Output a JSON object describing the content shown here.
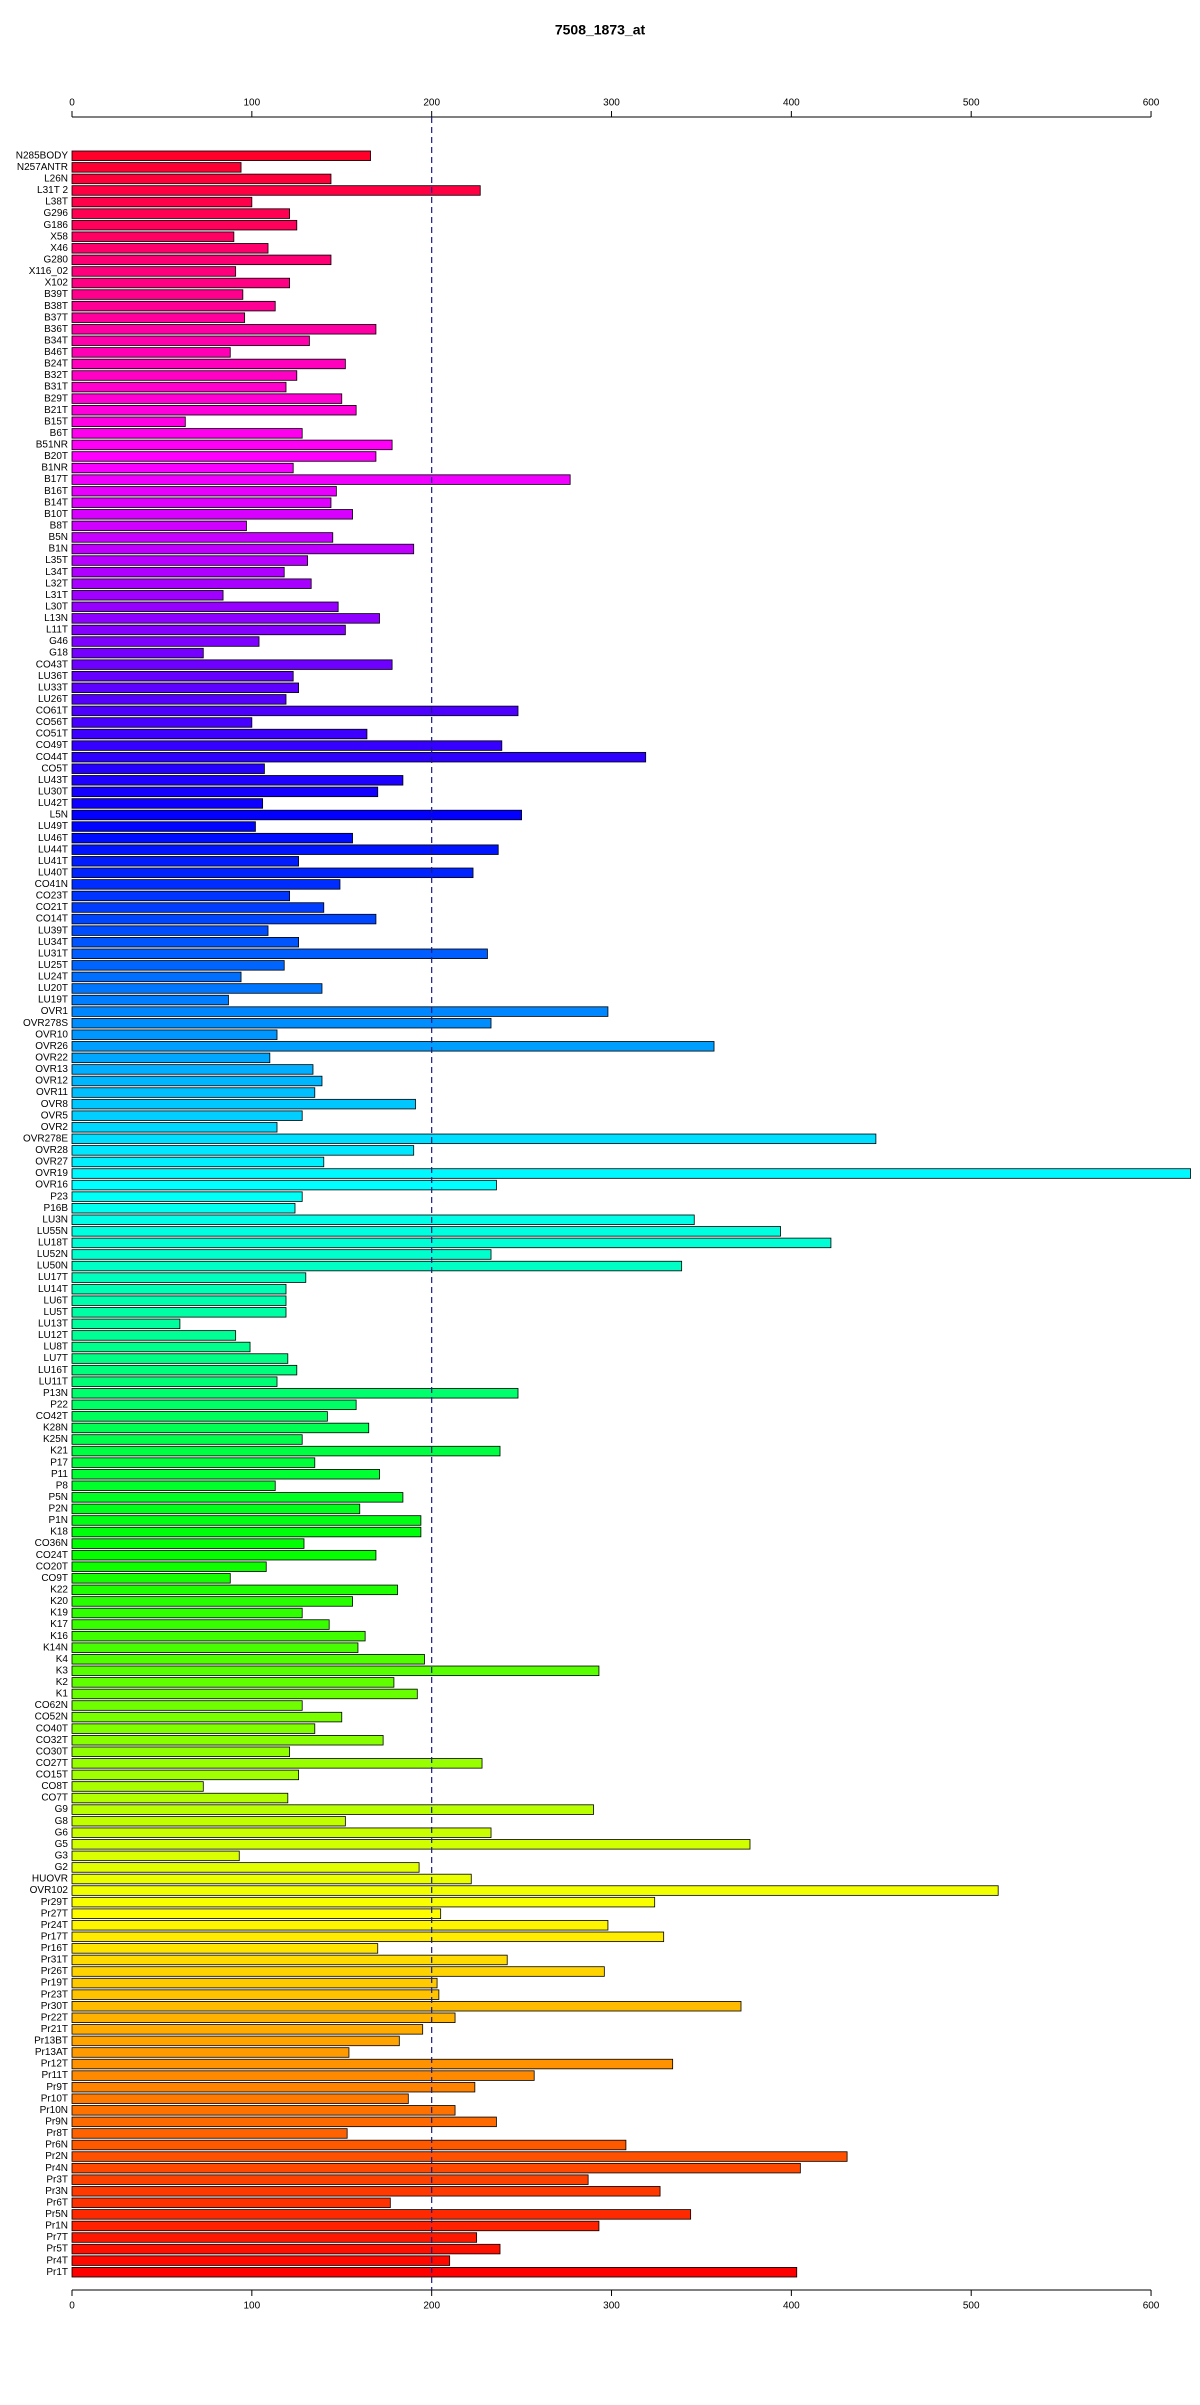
{
  "chart_data": {
    "type": "barh",
    "title": "7508_1873_at",
    "categories": [
      "N285BODY",
      "N257ANTR",
      "L26N",
      "L31T 2",
      "L38T",
      "G296",
      "G186",
      "X58",
      "X46",
      "G280",
      "X116_02",
      "X102",
      "B39T",
      "B38T",
      "B37T",
      "B36T",
      "B34T",
      "B46T",
      "B24T",
      "B32T",
      "B31T",
      "B29T",
      "B21T",
      "B15T",
      "B6T",
      "B51NR",
      "B20T",
      "B1NR",
      "B17T",
      "B16T",
      "B14T",
      "B10T",
      "B8T",
      "B5N",
      "B1N",
      "L35T",
      "L34T",
      "L32T",
      "L31T",
      "L30T",
      "L13N",
      "L11T",
      "G46",
      "G18",
      "CO43T",
      "LU36T",
      "LU33T",
      "LU26T",
      "CO61T",
      "CO56T",
      "CO51T",
      "CO49T",
      "CO44T",
      "CO5T",
      "LU43T",
      "LU30T",
      "LU42T",
      "L5N",
      "LU49T",
      "LU46T",
      "LU44T",
      "LU41T",
      "LU40T",
      "CO41N",
      "CO23T",
      "CO21T",
      "CO14T",
      "LU39T",
      "LU34T",
      "LU31T",
      "LU25T",
      "LU24T",
      "LU20T",
      "LU19T",
      "OVR1",
      "OVR278S",
      "OVR10",
      "OVR26",
      "OVR22",
      "OVR13",
      "OVR12",
      "OVR11",
      "OVR8",
      "OVR5",
      "OVR2",
      "OVR278E",
      "OVR28",
      "OVR27",
      "OVR19",
      "OVR16",
      "P23",
      "P16B",
      "LU3N",
      "LU55N",
      "LU18T",
      "LU52N",
      "LU50N",
      "LU17T",
      "LU14T",
      "LU6T",
      "LU5T",
      "LU13T",
      "LU12T",
      "LU8T",
      "LU7T",
      "LU16T",
      "LU11T",
      "P13N",
      "P22",
      "CO42T",
      "K28N",
      "K25N",
      "K21",
      "P17",
      "P11",
      "P8",
      "P5N",
      "P2N",
      "P1N",
      "K18",
      "CO36N",
      "CO24T",
      "CO20T",
      "CO9T",
      "K22",
      "K20",
      "K19",
      "K17",
      "K16",
      "K14N",
      "K4",
      "K3",
      "K2",
      "K1",
      "CO62N",
      "CO52N",
      "CO40T",
      "CO32T",
      "CO30T",
      "CO27T",
      "CO15T",
      "CO8T",
      "CO7T",
      "G9",
      "G8",
      "G6",
      "G5",
      "G3",
      "G2",
      "HUOVR",
      "OVR102",
      "Pr29T",
      "Pr27T",
      "Pr24T",
      "Pr17T",
      "Pr16T",
      "Pr31T",
      "Pr26T",
      "Pr19T",
      "Pr23T",
      "Pr30T",
      "Pr22T",
      "Pr21T",
      "Pr13BT",
      "Pr13AT",
      "Pr12T",
      "Pr11T",
      "Pr9T",
      "Pr10T",
      "Pr10N",
      "Pr9N",
      "Pr8T",
      "Pr6N",
      "Pr2N",
      "Pr4N",
      "Pr3T",
      "Pr3N",
      "Pr6T",
      "Pr5N",
      "Pr1N",
      "Pr7T",
      "Pr5T",
      "Pr4T",
      "Pr1T"
    ],
    "values": [
      166,
      94,
      144,
      227,
      100,
      121,
      125,
      90,
      109,
      144,
      91,
      121,
      95,
      113,
      96,
      169,
      132,
      88,
      152,
      125,
      119,
      150,
      158,
      63,
      128,
      178,
      169,
      123,
      277,
      147,
      144,
      156,
      97,
      145,
      190,
      131,
      118,
      133,
      84,
      148,
      171,
      152,
      104,
      73,
      178,
      123,
      126,
      119,
      248,
      100,
      164,
      239,
      319,
      107,
      184,
      170,
      106,
      250,
      102,
      156,
      237,
      126,
      223,
      149,
      121,
      140,
      169,
      109,
      126,
      231,
      118,
      94,
      139,
      87,
      298,
      233,
      114,
      357,
      110,
      134,
      139,
      135,
      191,
      128,
      114,
      447,
      190,
      140,
      622,
      236,
      128,
      124,
      346,
      394,
      422,
      233,
      339,
      130,
      119,
      119,
      119,
      60,
      91,
      99,
      120,
      125,
      114,
      248,
      158,
      142,
      165,
      128,
      238,
      135,
      171,
      113,
      184,
      160,
      194,
      194,
      129,
      169,
      108,
      88,
      181,
      156,
      128,
      143,
      163,
      159,
      196,
      293,
      179,
      192,
      128,
      150,
      135,
      173,
      121,
      228,
      126,
      73,
      120,
      290,
      152,
      233,
      377,
      93,
      193,
      222,
      515,
      324,
      205,
      298,
      329,
      170,
      242,
      296,
      203,
      204,
      372,
      213,
      195,
      182,
      154,
      334,
      257,
      224,
      187,
      213,
      236,
      153,
      308,
      431,
      405,
      287,
      327,
      177,
      344,
      293,
      225,
      238,
      210,
      403
    ],
    "colormap": "rainbow",
    "xlim": [
      0,
      625
    ],
    "xticks": [
      0,
      100,
      200,
      300,
      400,
      500,
      600
    ],
    "vline": 200,
    "vline_color": "#1a1a8c"
  }
}
